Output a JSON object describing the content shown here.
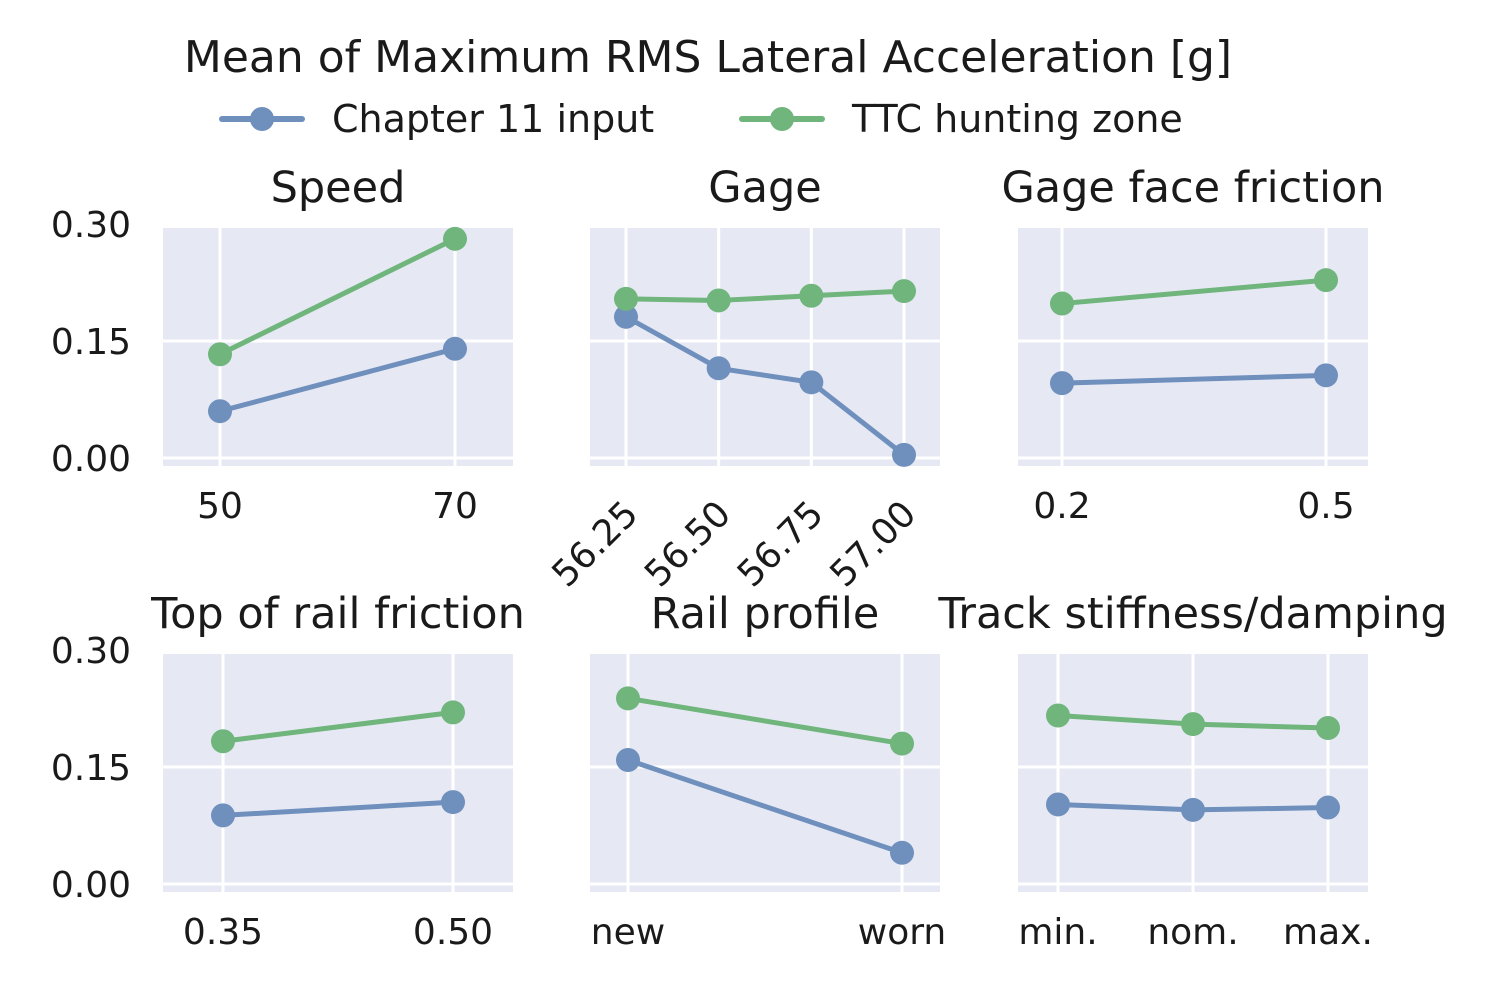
{
  "chart_data": {
    "type": "line",
    "title": "Mean of Maximum RMS Lateral Acceleration [g]",
    "ylim": [
      0.0,
      0.3
    ],
    "yticks": [
      "0.00",
      "0.15",
      "0.30"
    ],
    "series_names": [
      "Chapter 11 input",
      "TTC hunting zone"
    ],
    "colors": {
      "Chapter 11 input": "#6f8fbd",
      "TTC hunting zone": "#6fb57c",
      "panel_bg": "#e6e9f4",
      "grid": "#ffffff"
    },
    "panels": [
      {
        "title": "Speed",
        "categories": [
          "50",
          "70"
        ],
        "rotate_ticks": false,
        "series": [
          {
            "name": "Chapter 11 input",
            "values": [
              0.06,
              0.14
            ]
          },
          {
            "name": "TTC hunting zone",
            "values": [
              0.133,
              0.281
            ]
          }
        ]
      },
      {
        "title": "Gage",
        "categories": [
          "56.25",
          "56.50",
          "56.75",
          "57.00"
        ],
        "rotate_ticks": true,
        "series": [
          {
            "name": "Chapter 11 input",
            "values": [
              0.181,
              0.115,
              0.097,
              0.004
            ]
          },
          {
            "name": "TTC hunting zone",
            "values": [
              0.204,
              0.202,
              0.208,
              0.214
            ]
          }
        ]
      },
      {
        "title": "Gage face friction",
        "categories": [
          "0.2",
          "0.5"
        ],
        "rotate_ticks": false,
        "series": [
          {
            "name": "Chapter 11 input",
            "values": [
              0.096,
              0.106
            ]
          },
          {
            "name": "TTC hunting zone",
            "values": [
              0.198,
              0.228
            ]
          }
        ]
      },
      {
        "title": "Top of rail friction",
        "categories": [
          "0.35",
          "0.50"
        ],
        "rotate_ticks": false,
        "series": [
          {
            "name": "Chapter 11 input",
            "values": [
              0.088,
              0.105
            ]
          },
          {
            "name": "TTC hunting zone",
            "values": [
              0.183,
              0.22
            ]
          }
        ]
      },
      {
        "title": "Rail profile",
        "categories": [
          "new",
          "worn"
        ],
        "rotate_ticks": false,
        "series": [
          {
            "name": "Chapter 11 input",
            "values": [
              0.159,
              0.04
            ]
          },
          {
            "name": "TTC hunting zone",
            "values": [
              0.238,
              0.18
            ]
          }
        ]
      },
      {
        "title": "Track stiffness/damping",
        "categories": [
          "min.",
          "nom.",
          "max."
        ],
        "rotate_ticks": false,
        "series": [
          {
            "name": "Chapter 11 input",
            "values": [
              0.102,
              0.095,
              0.098
            ]
          },
          {
            "name": "TTC hunting zone",
            "values": [
              0.216,
              0.205,
              0.2
            ]
          }
        ]
      }
    ]
  }
}
